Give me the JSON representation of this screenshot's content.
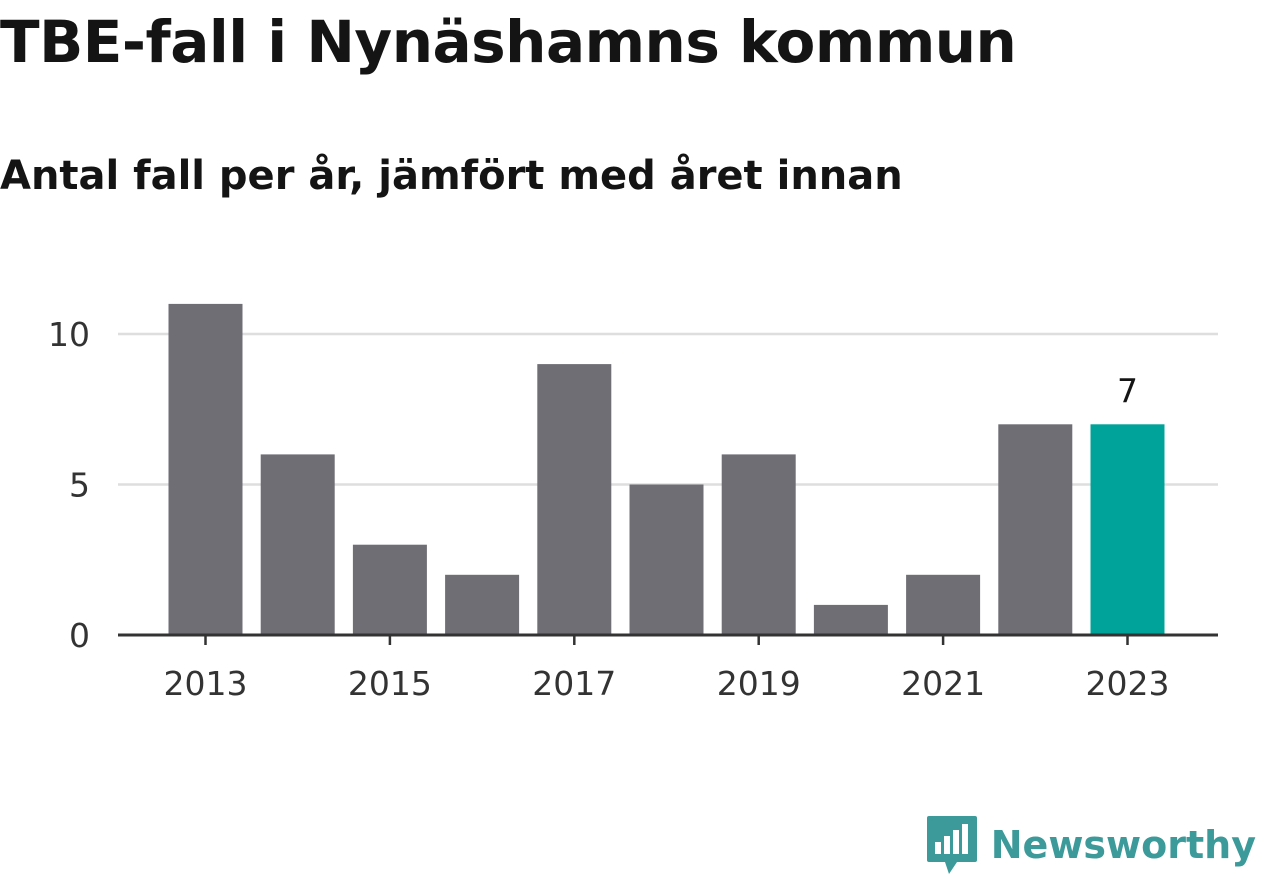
{
  "title": "TBE-fall i Nynäshamns kommun",
  "subtitle": "Antal fall per år, jämfört med året innan",
  "brand": {
    "name": "Newsworthy",
    "icon": "bar-chart-speech-bubble-icon",
    "color": "#3c9a9a"
  },
  "colors": {
    "bar": "#6f6e74",
    "highlight": "#00a39a",
    "grid": "#dedede",
    "axis": "#333333"
  },
  "chart_data": {
    "type": "bar",
    "title": "TBE-fall i Nynäshamns kommun",
    "subtitle": "Antal fall per år, jämfört med året innan",
    "xlabel": "",
    "ylabel": "",
    "categories": [
      2013,
      2014,
      2015,
      2016,
      2017,
      2018,
      2019,
      2020,
      2021,
      2022,
      2023
    ],
    "values": [
      11,
      6,
      3,
      2,
      9,
      5,
      6,
      1,
      2,
      7,
      7
    ],
    "highlight_index": 10,
    "highlight_label": "7",
    "x_ticks": [
      "2013",
      "2015",
      "2017",
      "2019",
      "2021",
      "2023"
    ],
    "y_ticks": [
      0,
      5,
      10
    ],
    "ylim": [
      0,
      11
    ],
    "grid": true,
    "legend": "none"
  }
}
